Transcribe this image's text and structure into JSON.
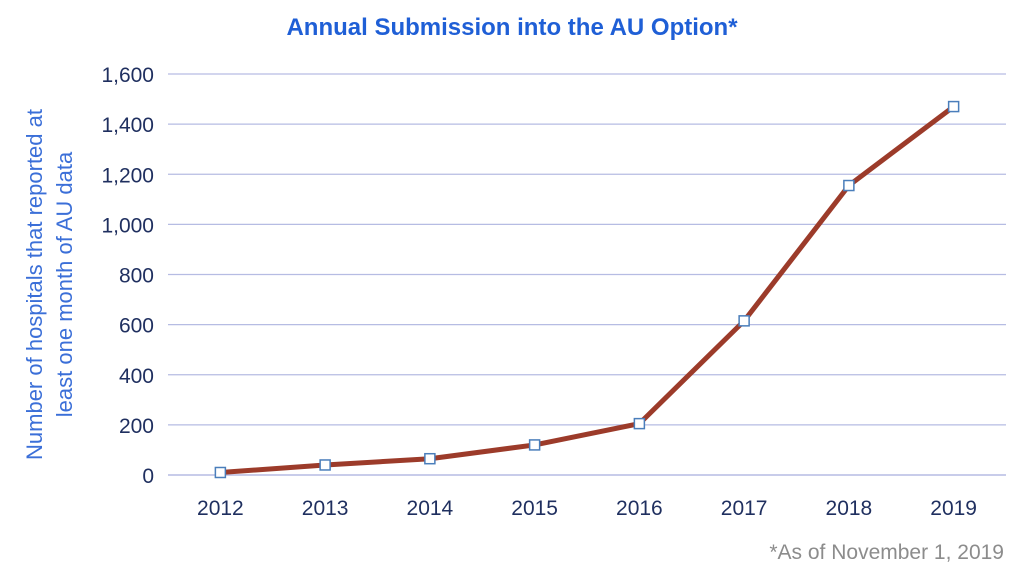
{
  "chart_data": {
    "type": "line",
    "title": "Annual Submission into the AU Option*",
    "ylabel_lines": [
      "Number of hospitals that reported at",
      "least one month of AU data"
    ],
    "xlabel": "",
    "categories": [
      "2012",
      "2013",
      "2014",
      "2015",
      "2016",
      "2017",
      "2018",
      "2019"
    ],
    "series": [
      {
        "values": [
          10,
          40,
          65,
          120,
          205,
          615,
          1155,
          1470
        ]
      }
    ],
    "ylim": [
      0,
      1600
    ],
    "yticks": [
      0,
      200,
      400,
      600,
      800,
      1000,
      1200,
      1400,
      1600
    ],
    "ytick_labels": [
      "0",
      "200",
      "400",
      "600",
      "800",
      "1,000",
      "1,200",
      "1,400",
      "1,600"
    ],
    "grid": true,
    "legend": "none",
    "colors": {
      "line": "#9C3B2A",
      "marker_stroke": "#4A7EBB",
      "grid": "#B6BCE3",
      "tick_text": "#1F2F5F",
      "axis_label": "#3B6FD8",
      "title": "#1F5FD6"
    }
  },
  "footnote": "*As of November 1, 2019"
}
